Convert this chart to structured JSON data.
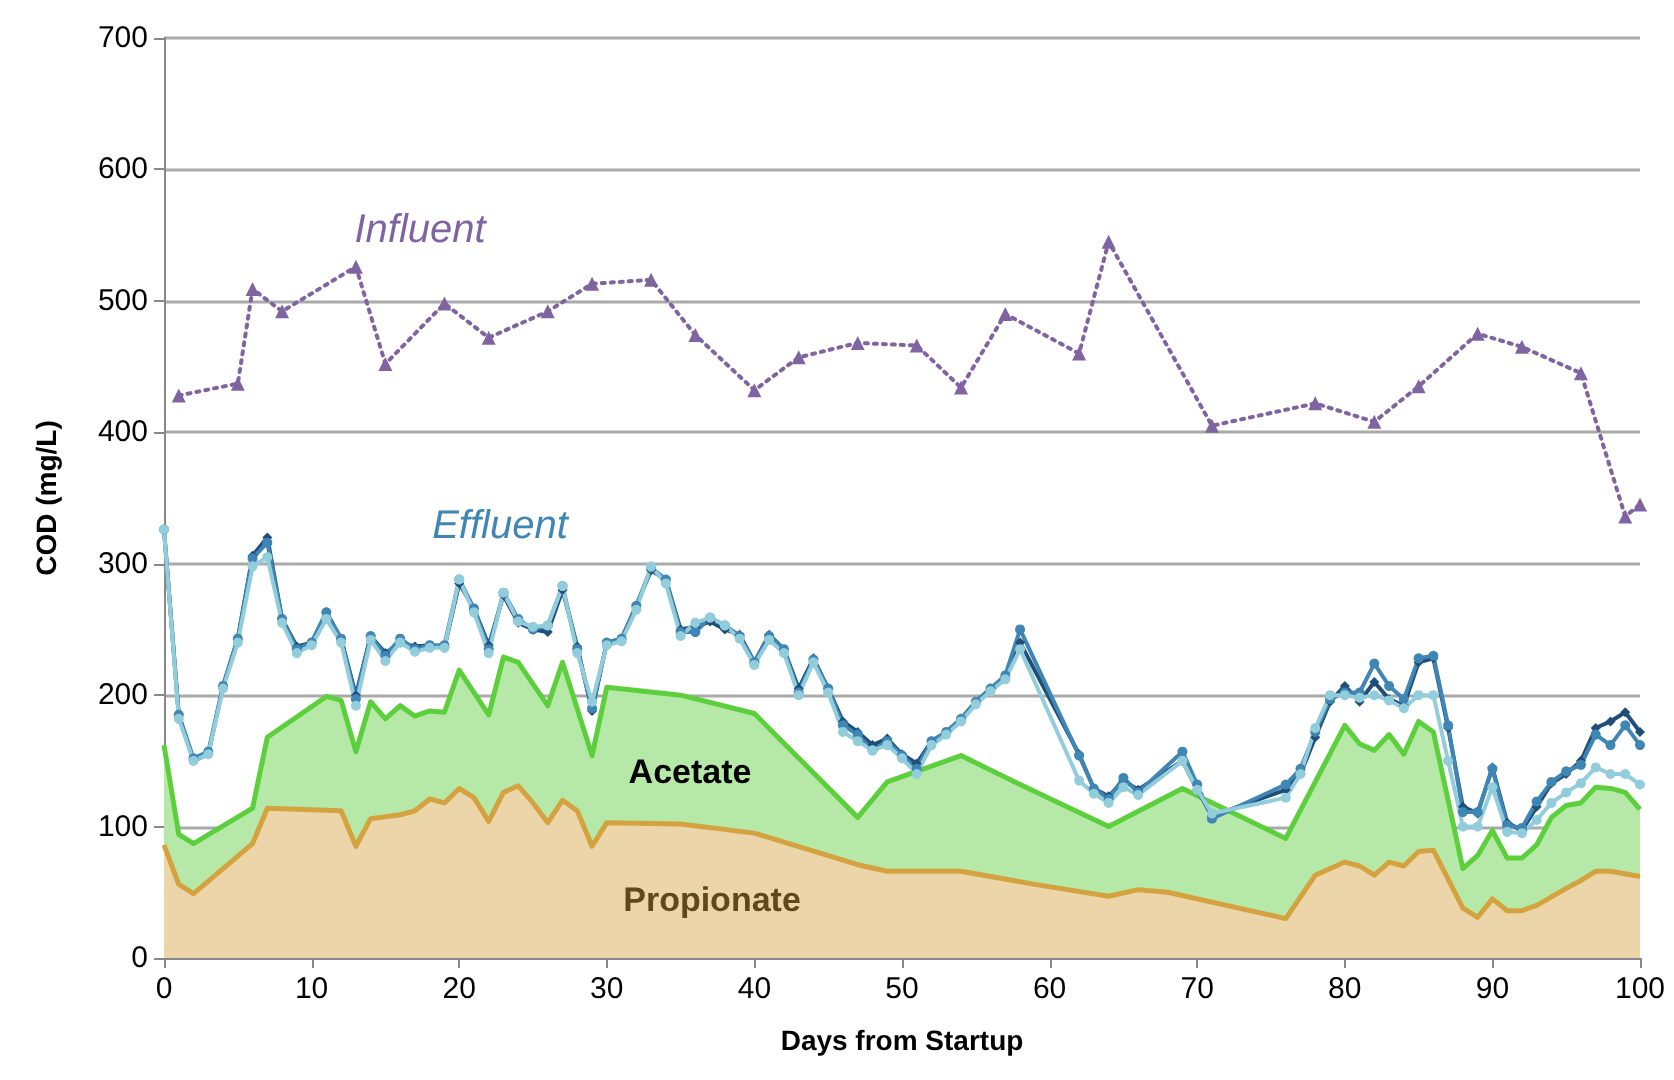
{
  "chart_data": {
    "type": "line",
    "xlabel": "Days from Startup",
    "ylabel": "COD (mg/L)",
    "xlim": [
      0,
      100
    ],
    "xticks": [
      0,
      10,
      20,
      30,
      40,
      50,
      60,
      70,
      80,
      90,
      100
    ],
    "ylim": [
      0,
      700
    ],
    "yticks": [
      0,
      100,
      200,
      300,
      400,
      500,
      600,
      700
    ],
    "grid": "y",
    "series": [
      {
        "name": "Acetate",
        "type": "area",
        "color": "#5ccf3c",
        "marker": "none",
        "x": [
          0,
          1,
          2,
          6,
          7,
          11,
          12,
          13,
          14,
          15,
          16,
          17,
          18,
          19,
          20,
          22,
          23,
          24,
          26,
          27,
          29,
          30,
          35,
          40,
          47,
          49,
          54,
          58,
          64,
          69,
          76,
          80,
          81,
          82,
          83,
          84,
          85,
          86,
          88,
          89,
          90,
          91,
          92,
          93,
          94,
          95,
          96,
          97,
          98,
          99,
          100
        ],
        "values": [
          162,
          94,
          87,
          114,
          168,
          199,
          196,
          157,
          195,
          182,
          192,
          184,
          188,
          187,
          219,
          185,
          229,
          225,
          192,
          225,
          154,
          206,
          200,
          186,
          107,
          134,
          154,
          132,
          100,
          129,
          91,
          177,
          163,
          158,
          170,
          155,
          180,
          172,
          68,
          78,
          97,
          76,
          76,
          86,
          107,
          116,
          118,
          130,
          129,
          126,
          113
        ]
      },
      {
        "name": "Propionate",
        "type": "area",
        "color": "#d4a23e",
        "marker": "none",
        "x": [
          0,
          1,
          2,
          6,
          7,
          12,
          13,
          14,
          16,
          17,
          18,
          19,
          20,
          21,
          22,
          23,
          24,
          25,
          26,
          27,
          28,
          29,
          30,
          35,
          40,
          47,
          49,
          54,
          59,
          64,
          66,
          68,
          76,
          78,
          80,
          81,
          82,
          83,
          84,
          85,
          86,
          88,
          89,
          90,
          91,
          92,
          93,
          95,
          96,
          97,
          98,
          100
        ],
        "values": [
          86,
          56,
          49,
          87,
          114,
          112,
          85,
          106,
          109,
          112,
          121,
          118,
          129,
          122,
          104,
          126,
          131,
          118,
          103,
          120,
          112,
          85,
          103,
          102,
          95,
          71,
          66,
          66,
          56,
          47,
          52,
          50,
          30,
          63,
          73,
          70,
          63,
          73,
          70,
          81,
          82,
          38,
          31,
          45,
          36,
          36,
          40,
          53,
          59,
          66,
          66,
          62
        ]
      },
      {
        "color": "#1f4e79",
        "marker": "diamond",
        "x": [
          0,
          1,
          2,
          3,
          4,
          5,
          6,
          7,
          8,
          9,
          10,
          11,
          12,
          13,
          14,
          15,
          16,
          17,
          18,
          19,
          20,
          21,
          22,
          23,
          24,
          25,
          26,
          27,
          28,
          29,
          30,
          31,
          32,
          33,
          34,
          35,
          36,
          37,
          38,
          39,
          40,
          41,
          42,
          43,
          44,
          45,
          46,
          47,
          48,
          49,
          50,
          51,
          52,
          53,
          54,
          55,
          56,
          57,
          58,
          62,
          63,
          64,
          65,
          66,
          69,
          70,
          71,
          76,
          77,
          78,
          79,
          80,
          81,
          82,
          83,
          84,
          85,
          86,
          87,
          88,
          89,
          90,
          91,
          92,
          93,
          94,
          95,
          96,
          97,
          98,
          99,
          100
        ],
        "values": [
          326,
          185,
          150,
          155,
          207,
          243,
          306,
          320,
          258,
          237,
          240,
          263,
          243,
          200,
          245,
          232,
          240,
          237,
          238,
          236,
          285,
          266,
          238,
          276,
          255,
          250,
          248,
          280,
          237,
          188,
          240,
          243,
          268,
          295,
          288,
          250,
          252,
          256,
          250,
          246,
          225,
          246,
          235,
          205,
          228,
          205,
          180,
          172,
          162,
          167,
          155,
          148,
          165,
          172,
          182,
          195,
          205,
          213,
          240,
          155,
          129,
          123,
          135,
          128,
          150,
          128,
          108,
          128,
          140,
          168,
          195,
          207,
          195,
          210,
          197,
          192,
          225,
          228,
          175,
          115,
          110,
          145,
          103,
          97,
          115,
          133,
          140,
          150,
          175,
          180,
          187,
          172
        ]
      },
      {
        "name": "Effluent",
        "color": "#3f86b5",
        "marker": "circle",
        "x": [
          0,
          1,
          2,
          3,
          4,
          5,
          6,
          7,
          8,
          9,
          10,
          11,
          12,
          13,
          14,
          15,
          16,
          17,
          18,
          19,
          20,
          21,
          22,
          23,
          24,
          25,
          26,
          27,
          28,
          29,
          30,
          31,
          32,
          33,
          34,
          35,
          36,
          37,
          38,
          39,
          40,
          41,
          42,
          43,
          44,
          45,
          46,
          47,
          48,
          49,
          50,
          51,
          52,
          53,
          54,
          55,
          56,
          57,
          58,
          62,
          63,
          64,
          65,
          66,
          69,
          70,
          71,
          76,
          77,
          78,
          79,
          80,
          81,
          82,
          83,
          84,
          85,
          86,
          87,
          88,
          89,
          90,
          91,
          92,
          93,
          94,
          95,
          96,
          97,
          98,
          99,
          100
        ],
        "values": [
          326,
          185,
          152,
          157,
          207,
          243,
          304,
          316,
          258,
          235,
          240,
          263,
          243,
          197,
          245,
          230,
          243,
          235,
          238,
          238,
          288,
          266,
          235,
          278,
          258,
          250,
          253,
          283,
          235,
          190,
          240,
          243,
          268,
          297,
          288,
          248,
          248,
          259,
          253,
          245,
          225,
          245,
          235,
          202,
          227,
          205,
          177,
          170,
          158,
          165,
          154,
          144,
          165,
          172,
          182,
          195,
          205,
          215,
          250,
          154,
          129,
          121,
          137,
          126,
          157,
          132,
          106,
          132,
          144,
          172,
          197,
          202,
          202,
          224,
          207,
          197,
          228,
          230,
          177,
          111,
          111,
          144,
          101,
          99,
          119,
          134,
          142,
          147,
          170,
          162,
          177,
          162
        ]
      },
      {
        "color": "#92cddc",
        "marker": "circle",
        "x": [
          0,
          1,
          2,
          3,
          4,
          5,
          6,
          7,
          8,
          9,
          10,
          11,
          12,
          13,
          14,
          15,
          16,
          17,
          18,
          19,
          20,
          21,
          22,
          23,
          24,
          25,
          26,
          27,
          28,
          29,
          30,
          31,
          32,
          33,
          34,
          35,
          36,
          37,
          38,
          39,
          40,
          41,
          42,
          43,
          44,
          45,
          46,
          47,
          48,
          49,
          50,
          51,
          52,
          53,
          54,
          55,
          56,
          57,
          58,
          62,
          63,
          64,
          65,
          66,
          69,
          70,
          71,
          76,
          77,
          78,
          79,
          80,
          81,
          82,
          83,
          84,
          85,
          86,
          87,
          88,
          89,
          90,
          91,
          92,
          93,
          94,
          95,
          96,
          97,
          98,
          99,
          100
        ],
        "values": [
          326,
          182,
          150,
          155,
          205,
          240,
          298,
          305,
          255,
          232,
          238,
          258,
          240,
          192,
          242,
          226,
          240,
          233,
          236,
          236,
          288,
          263,
          232,
          278,
          256,
          252,
          253,
          283,
          232,
          195,
          238,
          241,
          265,
          298,
          285,
          245,
          255,
          259,
          253,
          243,
          223,
          242,
          232,
          200,
          225,
          202,
          172,
          165,
          158,
          162,
          152,
          140,
          162,
          170,
          180,
          193,
          203,
          212,
          235,
          135,
          125,
          118,
          130,
          124,
          150,
          128,
          110,
          122,
          140,
          175,
          200,
          200,
          198,
          200,
          196,
          190,
          200,
          200,
          150,
          100,
          100,
          130,
          96,
          95,
          105,
          118,
          126,
          133,
          145,
          140,
          140,
          132
        ]
      },
      {
        "name": "Influent",
        "color": "#8064a2",
        "marker": "triangle",
        "line_style": "dotted",
        "x": [
          1,
          5,
          6,
          8,
          13,
          15,
          19,
          22,
          26,
          29,
          33,
          36,
          40,
          43,
          47,
          51,
          54,
          57,
          62,
          64,
          71,
          78,
          82,
          85,
          89,
          92,
          96,
          99,
          100
        ],
        "values": [
          428,
          437,
          509,
          492,
          526,
          452,
          498,
          472,
          492,
          513,
          516,
          474,
          432,
          457,
          468,
          466,
          434,
          490,
          460,
          545,
          405,
          422,
          408,
          435,
          475,
          465,
          445,
          336,
          345
        ]
      }
    ]
  }
}
